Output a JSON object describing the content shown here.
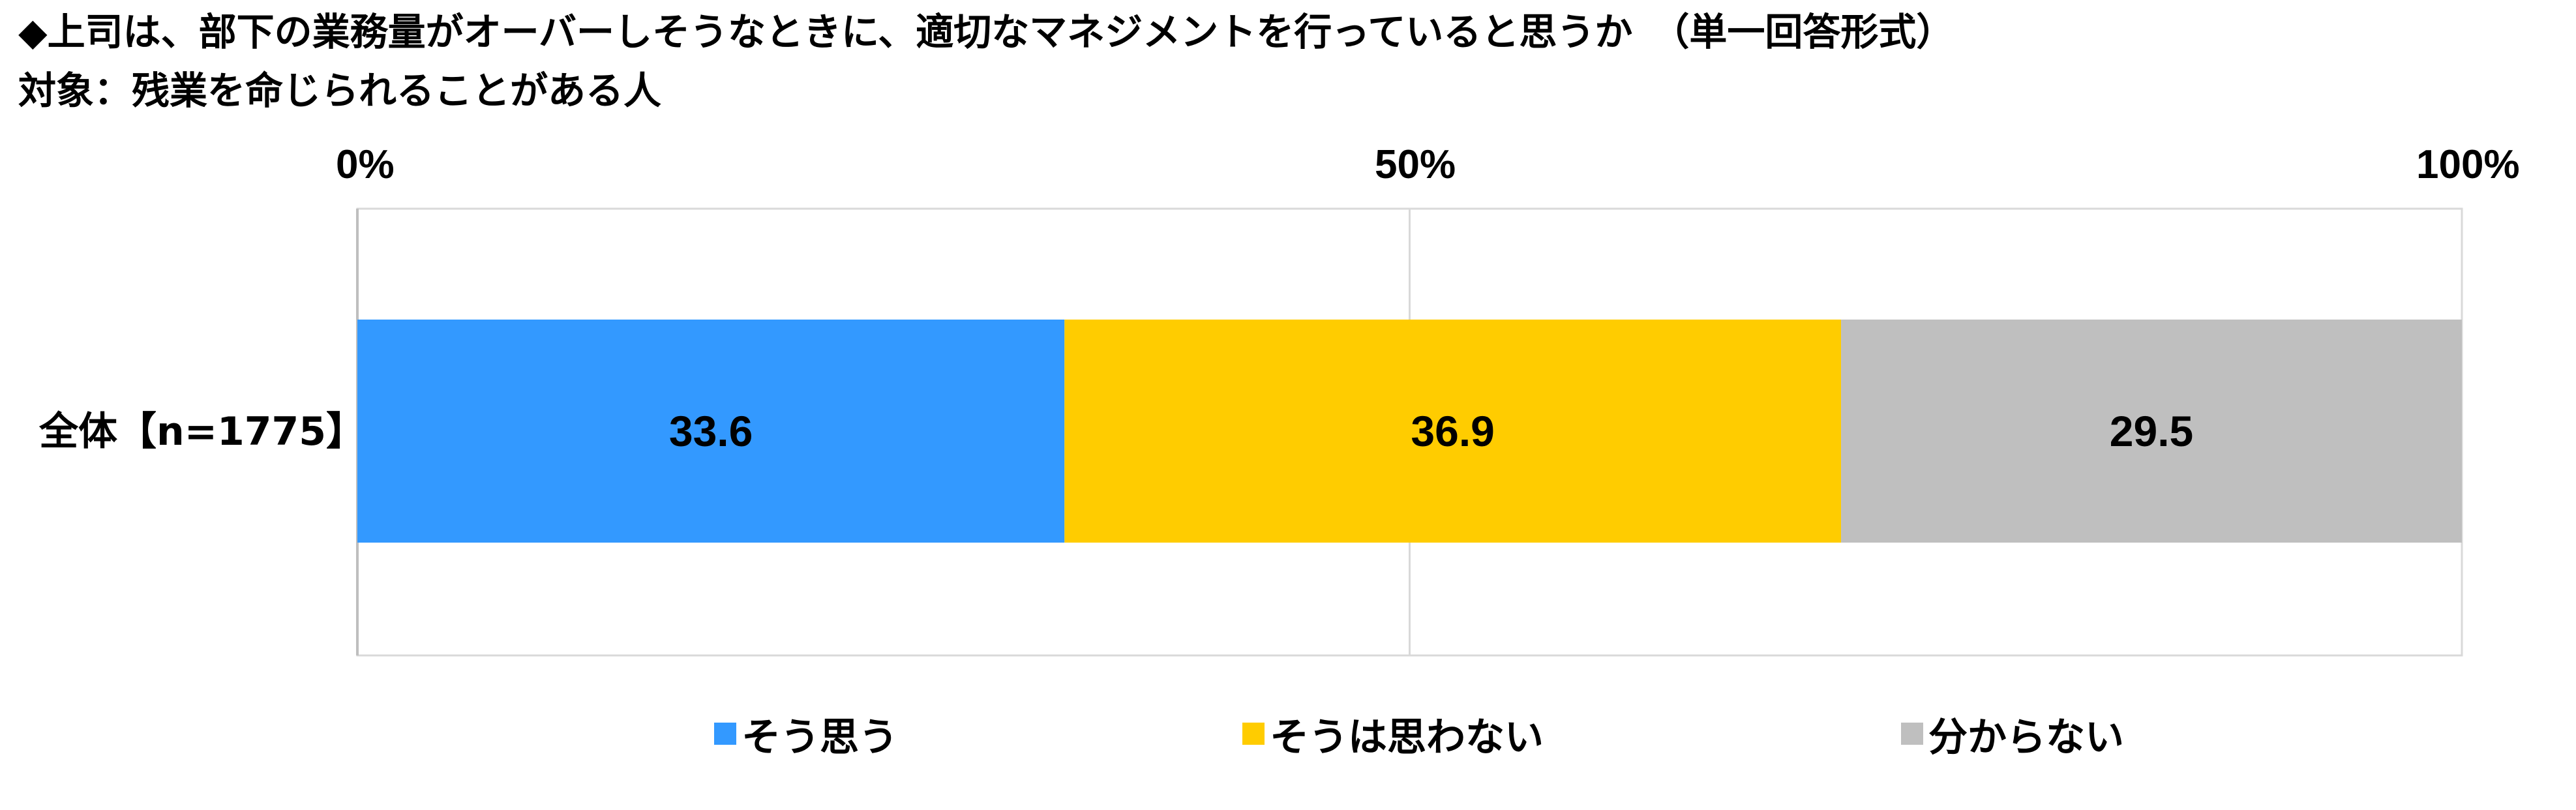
{
  "titles": {
    "line1": "◆上司は、部下の業務量がオーバーしそうなときに、適切なマネジメントを行っていると思うか　（単一回答形式）",
    "line2": "対象：残業を命じられることがある人"
  },
  "chart_data": {
    "type": "bar",
    "orientation": "horizontal",
    "stacked": "100%",
    "categories": [
      "全体【n=1775】"
    ],
    "series": [
      {
        "name": "そう思う",
        "values": [
          33.6
        ],
        "color": "#3399FF"
      },
      {
        "name": "そうは思わない",
        "values": [
          36.9
        ],
        "color": "#FFCC00"
      },
      {
        "name": "分からない",
        "values": [
          29.5
        ],
        "color": "#BFBFBF"
      }
    ],
    "xlim": [
      0,
      100
    ],
    "tick_labels": [
      "0%",
      "50%",
      "100%"
    ],
    "grid": true,
    "legend_position": "bottom"
  }
}
